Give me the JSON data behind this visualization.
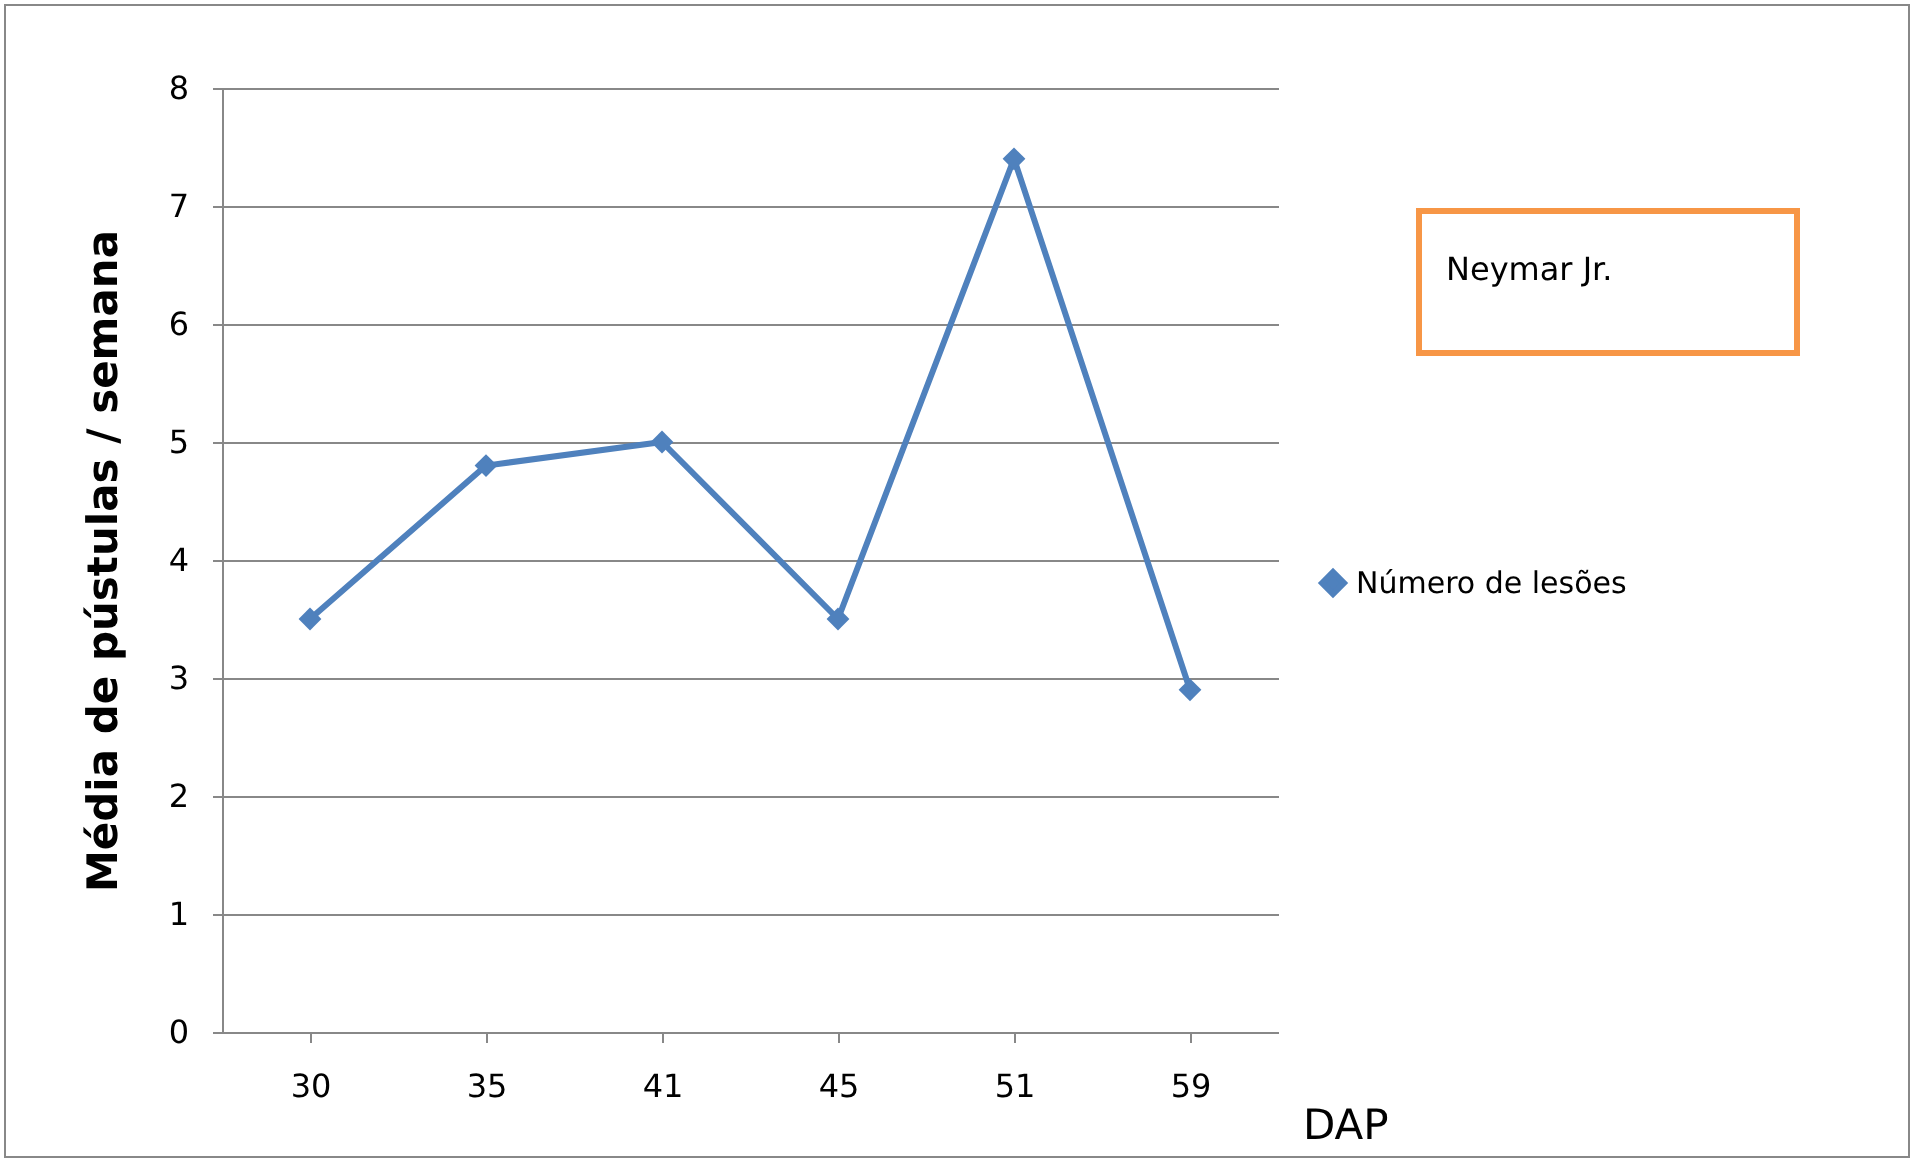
{
  "chart_data": {
    "type": "line",
    "xlabel": "DAP",
    "ylabel": "Média de pústulas / semana",
    "categories": [
      "30",
      "35",
      "41",
      "45",
      "51",
      "59"
    ],
    "series": [
      {
        "name": "Número de lesões",
        "color": "#4f81bd",
        "values": [
          3.5,
          4.8,
          5.0,
          3.5,
          7.4,
          2.9
        ]
      }
    ],
    "ylim": [
      0,
      8
    ],
    "yticks": [
      0,
      1,
      2,
      3,
      4,
      5,
      6,
      7,
      8
    ],
    "grid": "y",
    "legend": "right",
    "marker": "diamond",
    "line_style": "solid",
    "annotations": [
      "Neymar Jr."
    ]
  }
}
